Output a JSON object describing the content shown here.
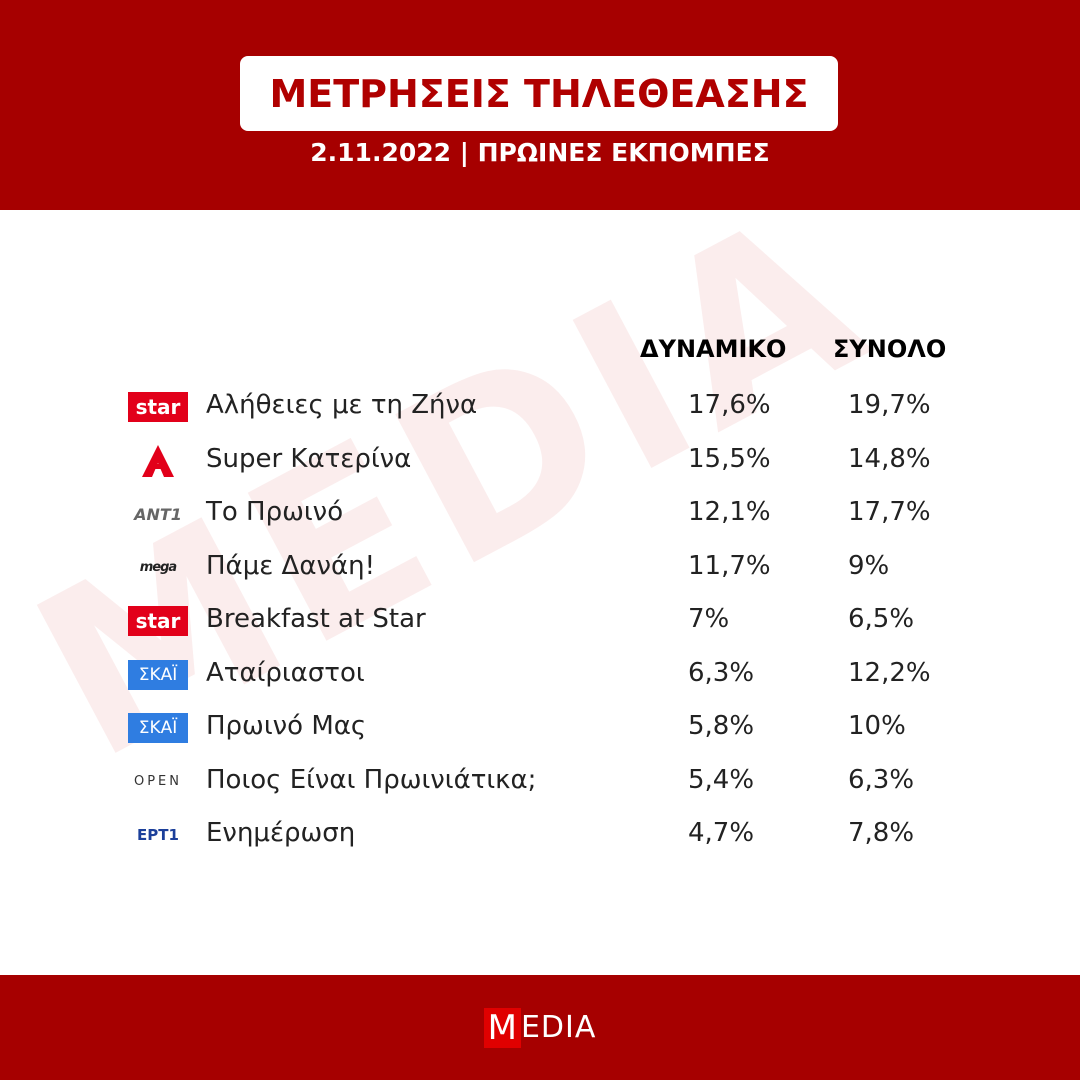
{
  "header": {
    "title": "ΜΕΤΡΗΣΕΙΣ ΤΗΛΕΘΕΑΣΗΣ",
    "subtitle": "2.11.2022 | ΠΡΩΙΝΕΣ ΕΚΠΟΜΠΕΣ"
  },
  "watermark": "MEDIA",
  "table": {
    "columns": [
      "ΔΥΝΑΜΙΚΟ",
      "ΣΥΝΟΛΟ"
    ],
    "rows": [
      {
        "logo": "star",
        "show": "Αλήθειες με τη Ζήνα",
        "values": [
          "17,6%",
          "19,7%"
        ]
      },
      {
        "show": "Super Κατερίνα",
        "values": [
          "15,5%",
          "14,8%"
        ]
      },
      {
        "logo": "ANT1",
        "show": "Το Πρωινό",
        "values": [
          "12,1%",
          "17,7%"
        ]
      },
      {
        "logo": "mega",
        "show": "Πάμε Δανάη!",
        "values": [
          "11,7%",
          "9%"
        ]
      },
      {
        "logo": "star",
        "show": "Breakfast at Star",
        "values": [
          "7%",
          "6,5%"
        ]
      },
      {
        "logo": "ΣΚΑΪ",
        "show": "Αταίριαστοι",
        "values": [
          "6,3%",
          "12,2%"
        ]
      },
      {
        "logo": "ΣΚΑΪ",
        "show": "Πρωινό Μας",
        "values": [
          "5,8%",
          "10%"
        ]
      },
      {
        "logo": "OPEN",
        "show": "Ποιος Είναι Πρωινιάτικα;",
        "values": [
          "5,4%",
          "6,3%"
        ]
      },
      {
        "logo": "ΕΡΤ1",
        "show": "Ενημέρωση",
        "values": [
          "4,7%",
          "7,8%"
        ]
      }
    ]
  },
  "footer": {
    "logo_initial": "M",
    "logo_rest": "EDIA"
  }
}
